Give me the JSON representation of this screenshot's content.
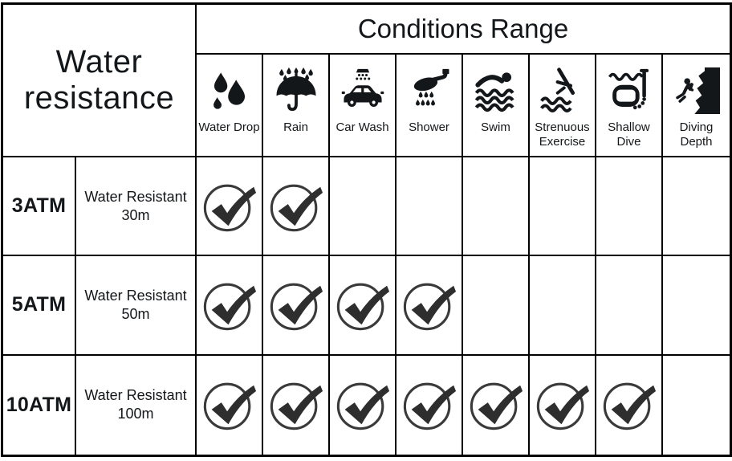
{
  "title": "Water resistance",
  "header": "Conditions Range",
  "conditions": [
    {
      "label": "Water Drop",
      "icon": "water-drop-icon"
    },
    {
      "label": "Rain",
      "icon": "rain-icon"
    },
    {
      "label": "Car Wash",
      "icon": "car-wash-icon"
    },
    {
      "label": "Shower",
      "icon": "shower-icon"
    },
    {
      "label": "Swim",
      "icon": "swim-icon"
    },
    {
      "label": "Strenuous Exercise",
      "icon": "strenuous-exercise-icon"
    },
    {
      "label": "Shallow Dive",
      "icon": "shallow-dive-icon"
    },
    {
      "label": "Diving Depth",
      "icon": "diving-depth-icon"
    }
  ],
  "rows": [
    {
      "rating": "3ATM",
      "description": "Water Resistant 30m",
      "checks": [
        true,
        true,
        false,
        false,
        false,
        false,
        false,
        false
      ]
    },
    {
      "rating": "5ATM",
      "description": "Water Resistant 50m",
      "checks": [
        true,
        true,
        true,
        true,
        false,
        false,
        false,
        false
      ]
    },
    {
      "rating": "10ATM",
      "description": "Water Resistant 100m",
      "checks": [
        true,
        true,
        true,
        true,
        true,
        true,
        true,
        false
      ]
    }
  ],
  "colors": {
    "ink": "#14171a",
    "border": "#000000",
    "check_stroke": "#3a3a3a",
    "check_fill": "#2e2e2e",
    "background": "#ffffff"
  },
  "chart_data": {
    "type": "table",
    "title": "Water resistance",
    "header": "Conditions Range",
    "columns": [
      "Water Drop",
      "Rain",
      "Car Wash",
      "Shower",
      "Swim",
      "Strenuous Exercise",
      "Shallow Dive",
      "Diving Depth"
    ],
    "rows": [
      {
        "rating": "3ATM",
        "description": "Water Resistant 30m",
        "checked": [
          "Water Drop",
          "Rain"
        ]
      },
      {
        "rating": "5ATM",
        "description": "Water Resistant 50m",
        "checked": [
          "Water Drop",
          "Rain",
          "Car Wash",
          "Shower"
        ]
      },
      {
        "rating": "10ATM",
        "description": "Water Resistant 100m",
        "checked": [
          "Water Drop",
          "Rain",
          "Car Wash",
          "Shower",
          "Swim",
          "Strenuous Exercise",
          "Shallow Dive"
        ]
      }
    ]
  }
}
